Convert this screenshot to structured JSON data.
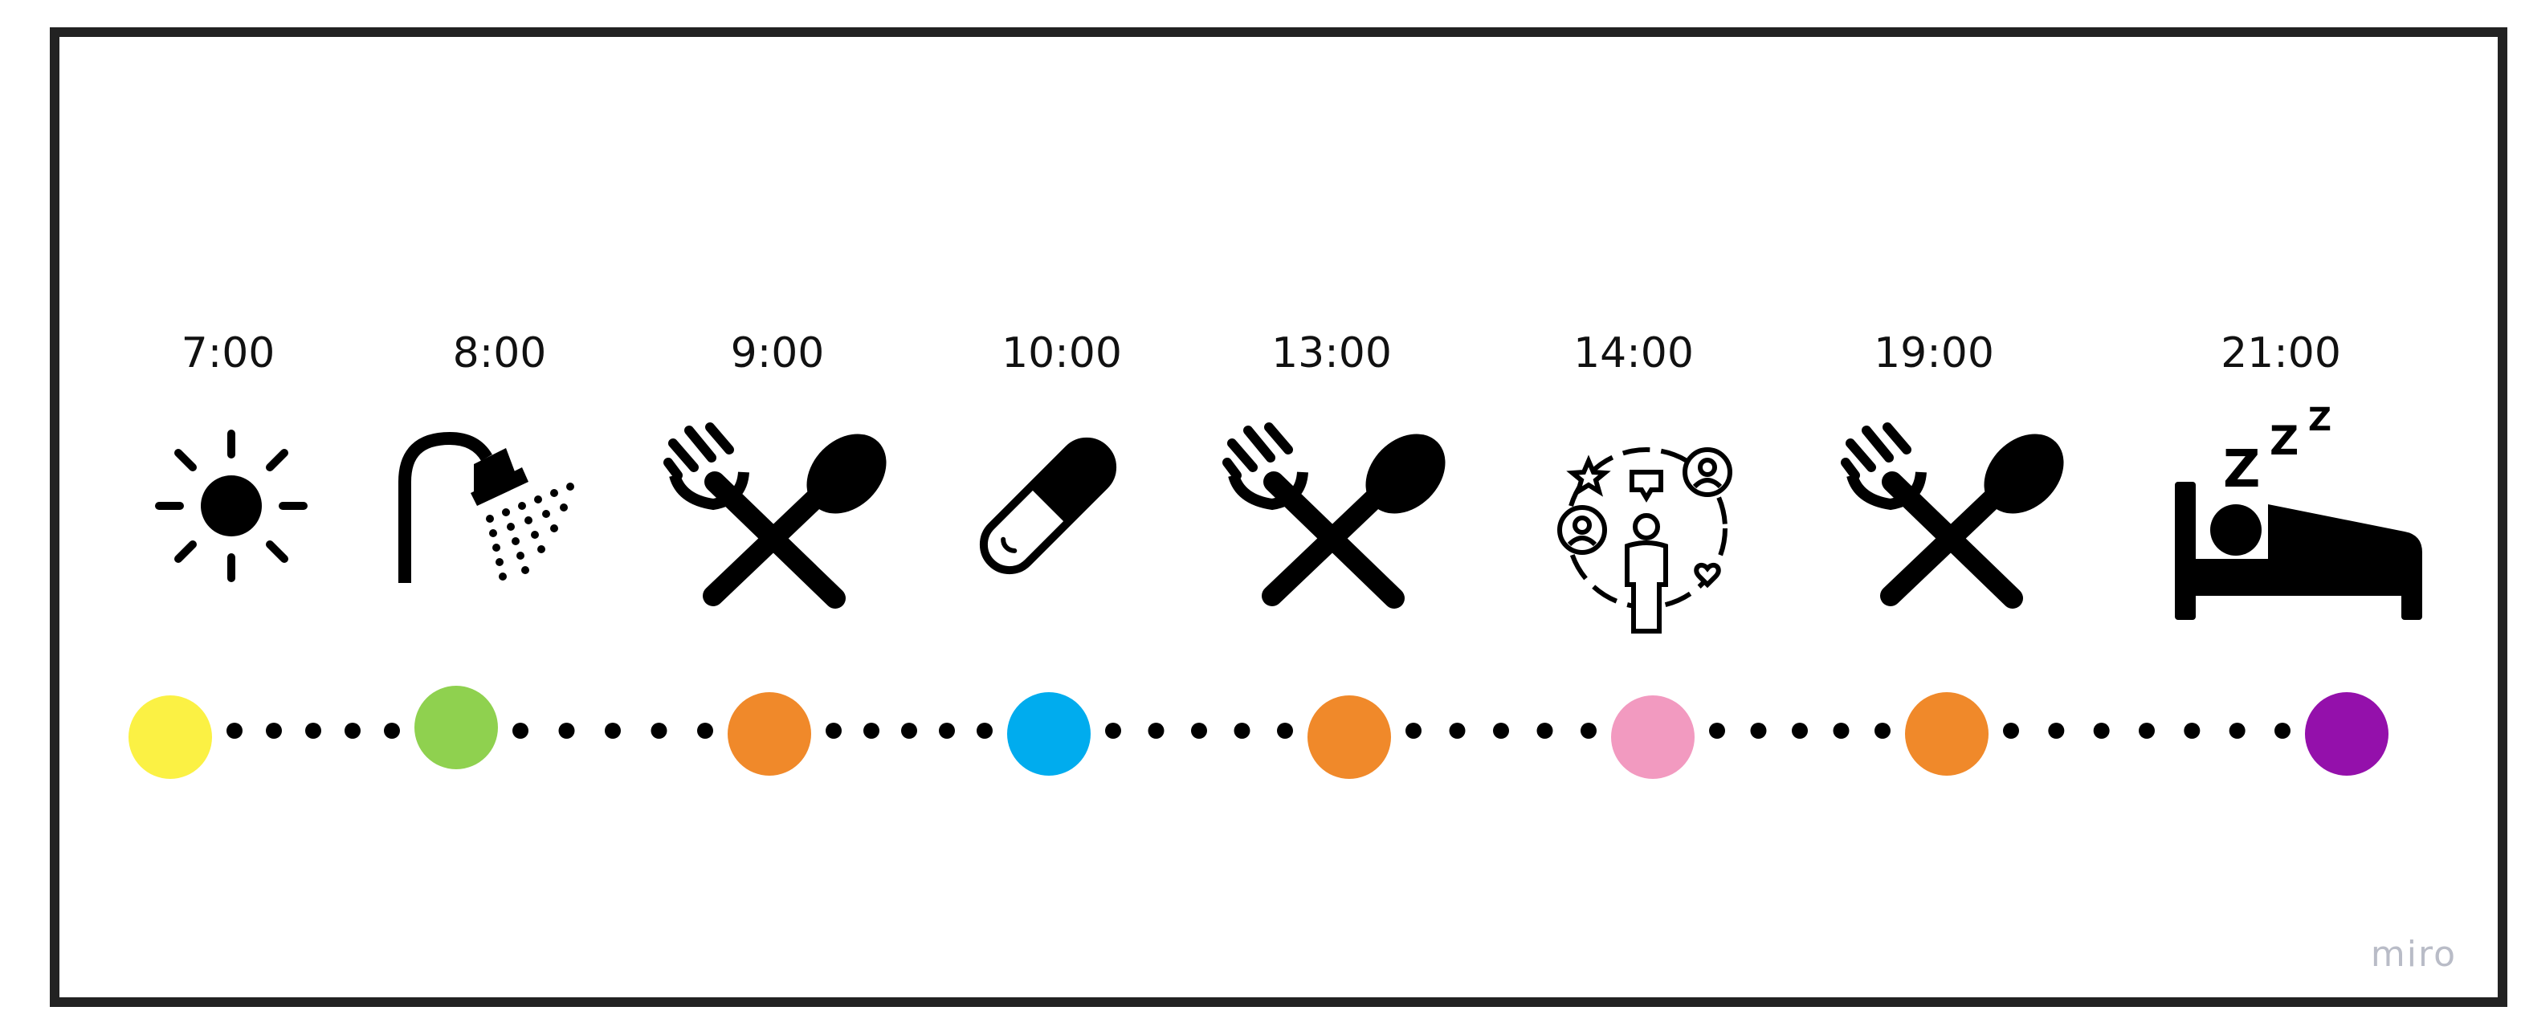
{
  "schedule": {
    "times": [
      "7:00",
      "8:00",
      "9:00",
      "10:00",
      "13:00",
      "14:00",
      "19:00",
      "21:00"
    ],
    "icons": [
      "sun-icon",
      "shower-icon",
      "fork-spoon-icon",
      "pill-icon",
      "fork-spoon-icon",
      "social-network-icon",
      "fork-spoon-icon",
      "sleeping-bed-icon"
    ],
    "sleep_letters": [
      "Z",
      "Z",
      "Z"
    ],
    "dot_colors": [
      "#fbf144",
      "#8fd14f",
      "#f0892a",
      "#00acee",
      "#f0892a",
      "#f29ac0",
      "#f0892a",
      "#9410ab"
    ]
  },
  "footer": {
    "brand": "miro"
  }
}
